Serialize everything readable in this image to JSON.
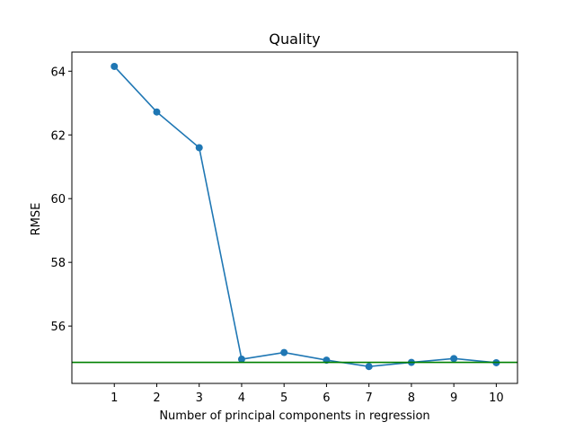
{
  "chart_data": {
    "type": "line",
    "title": "Quality",
    "xlabel": "Number of principal components in regression",
    "ylabel": "RMSE",
    "x": [
      1,
      2,
      3,
      4,
      5,
      6,
      7,
      8,
      9,
      10
    ],
    "xlim": [
      0,
      10.5
    ],
    "ylim": [
      54.2,
      64.6
    ],
    "xticks": [
      1,
      2,
      3,
      4,
      5,
      6,
      7,
      8,
      9,
      10
    ],
    "yticks": [
      56,
      58,
      60,
      62,
      64
    ],
    "grid": false,
    "series": [
      {
        "values": [
          64.15,
          62.72,
          61.6,
          54.96,
          55.17,
          54.93,
          54.73,
          54.86,
          54.98,
          54.85
        ],
        "color": "#1f77b4",
        "marker": "circle"
      }
    ],
    "reference_lines": [
      {
        "orientation": "horizontal",
        "y": 54.86,
        "color": "#008000"
      }
    ]
  }
}
